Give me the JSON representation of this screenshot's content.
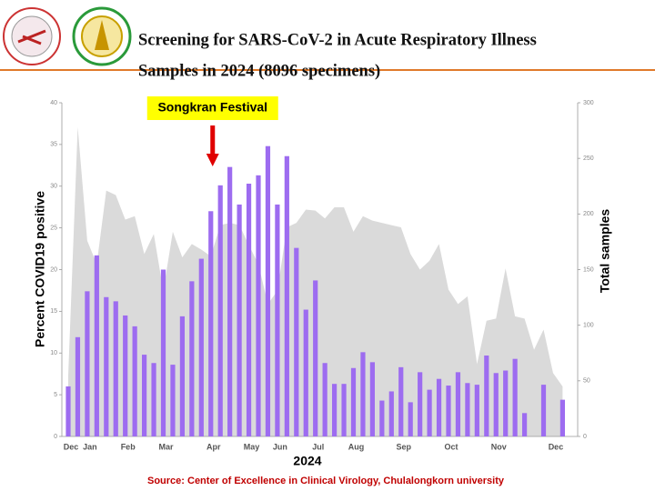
{
  "chart_data": {
    "type": "bar",
    "title": [
      "Screening for SARS-CoV-2 in Acute Respiratory Illness",
      "Samples in 2024 (8096 specimens)"
    ],
    "annotation": "Songkran Festival",
    "xlabel": "2024",
    "ylabel": "Percent COVID19 positive",
    "y2label": "Total samples",
    "source": "Source: Center of Excellence in Clinical Virology, Chulalongkorn university",
    "categories": [
      "Dec",
      null,
      "Jan",
      null,
      null,
      null,
      "Feb",
      null,
      null,
      null,
      "Mar",
      null,
      null,
      null,
      null,
      "Apr",
      null,
      null,
      null,
      "May",
      null,
      null,
      "Jun",
      null,
      null,
      null,
      "Jul",
      null,
      null,
      null,
      "Aug",
      null,
      null,
      null,
      null,
      "Sep",
      null,
      null,
      null,
      null,
      "Oct",
      null,
      null,
      null,
      null,
      "Nov",
      null,
      null,
      null,
      null,
      null,
      "Dec",
      null
    ],
    "series": [
      {
        "name": "Percent COVID19 positive",
        "color": "#9d6cf0",
        "axis": "y",
        "values": [
          6,
          11.9,
          17.4,
          21.7,
          16.7,
          16.2,
          14.5,
          13.2,
          9.8,
          8.8,
          20,
          8.6,
          14.4,
          18.6,
          21.3,
          27,
          30.1,
          32.3,
          27.8,
          30.3,
          31.3,
          34.8,
          27.8,
          33.6,
          22.6,
          15.2,
          18.7,
          8.8,
          6.3,
          6.3,
          8.2,
          10.1,
          8.9,
          4.3,
          5.4,
          8.3,
          4.1,
          7.7,
          5.6,
          6.9,
          6.1,
          7.7,
          6.4,
          6.2,
          9.7,
          7.6,
          7.9,
          9.3,
          2.8,
          null,
          6.2,
          null,
          4.4
        ]
      },
      {
        "name": "Total samples",
        "color": "#dadada",
        "axis": "y2",
        "values": [
          55,
          278,
          176,
          155,
          221,
          217,
          195,
          198,
          164,
          182,
          131,
          184,
          161,
          173,
          168,
          162,
          190,
          192,
          190,
          172,
          155,
          119,
          131,
          188,
          192,
          204,
          203,
          196,
          206,
          206,
          184,
          198,
          194,
          192,
          190,
          188,
          164,
          150,
          158,
          173,
          132,
          119,
          126,
          65,
          104,
          106,
          151,
          108,
          106,
          78,
          96,
          57,
          45
        ]
      }
    ],
    "ylim": [
      0,
      40
    ],
    "yticks": [
      0,
      5,
      10,
      15,
      20,
      25,
      30,
      35,
      40
    ],
    "y2lim": [
      0,
      300
    ],
    "y2ticks": [
      0,
      50,
      100,
      150,
      200,
      250,
      300
    ],
    "annotation_index": 15
  }
}
